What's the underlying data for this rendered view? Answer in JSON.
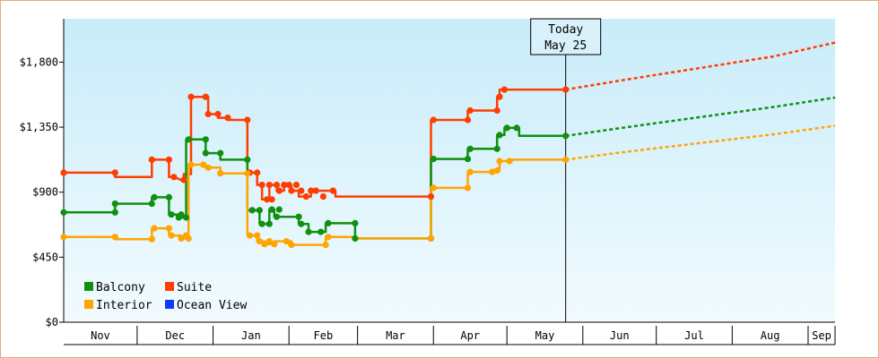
{
  "chart_data": {
    "type": "line",
    "title": "",
    "xlabel": "",
    "ylabel": "",
    "ylim": [
      0,
      2100
    ],
    "y_ticks": [
      0,
      450,
      900,
      1350,
      1800
    ],
    "y_tick_labels": [
      "$0",
      "$450",
      "$900",
      "$1,350",
      "$1,800"
    ],
    "months": [
      "Nov",
      "Dec",
      "Jan",
      "Feb",
      "Mar",
      "Apr",
      "May",
      "Jun",
      "Jul",
      "Aug",
      "Sep"
    ],
    "month_starts": [
      0,
      30,
      61,
      92,
      120,
      151,
      181,
      212,
      242,
      273,
      304
    ],
    "x_end": 315,
    "today": {
      "line1": "Today",
      "line2": "May 25",
      "day": 205
    },
    "legend": [
      {
        "name": "Balcony",
        "color": "#109010"
      },
      {
        "name": "Suite",
        "color": "#ff3d00"
      },
      {
        "name": "Interior",
        "color": "#ffa500"
      },
      {
        "name": "Ocean View",
        "color": "#0a3cff"
      }
    ],
    "series": [
      {
        "name": "Suite",
        "color": "#ff3d00",
        "points": [
          [
            0,
            1035
          ],
          [
            21,
            1035
          ],
          [
            21,
            1005
          ],
          [
            36,
            1005
          ],
          [
            36,
            1125
          ],
          [
            43,
            1125
          ],
          [
            43,
            1005
          ],
          [
            45,
            1005
          ],
          [
            45,
            1005
          ],
          [
            48,
            985
          ],
          [
            49,
            985
          ],
          [
            49,
            1025
          ],
          [
            52,
            1025
          ],
          [
            52,
            1560
          ],
          [
            59,
            1560
          ],
          [
            59,
            1440
          ],
          [
            63,
            1440
          ],
          [
            63,
            1415
          ],
          [
            67,
            1415
          ],
          [
            67,
            1400
          ],
          [
            75,
            1400
          ],
          [
            75,
            1035
          ],
          [
            79,
            1035
          ],
          [
            79,
            950
          ],
          [
            81,
            950
          ],
          [
            81,
            850
          ],
          [
            84,
            850
          ],
          [
            84,
            950
          ],
          [
            87,
            950
          ],
          [
            87,
            910
          ],
          [
            90,
            910
          ],
          [
            90,
            950
          ],
          [
            93,
            950
          ],
          [
            93,
            910
          ],
          [
            96,
            910
          ],
          [
            96,
            870
          ],
          [
            101,
            870
          ],
          [
            101,
            910
          ],
          [
            111,
            910
          ],
          [
            111,
            870
          ],
          [
            150,
            870
          ],
          [
            150,
            1400
          ],
          [
            165,
            1400
          ],
          [
            165,
            1465
          ],
          [
            177,
            1465
          ],
          [
            177,
            1560
          ],
          [
            178,
            1560
          ],
          [
            178,
            1610
          ],
          [
            180,
            1610
          ],
          [
            180,
            1610
          ],
          [
            205,
            1610
          ]
        ],
        "projection": [
          [
            205,
            1610
          ],
          [
            230,
            1680
          ],
          [
            260,
            1760
          ],
          [
            290,
            1840
          ],
          [
            315,
            1935
          ]
        ]
      },
      {
        "name": "Balcony",
        "color": "#109010",
        "points": [
          [
            0,
            760
          ],
          [
            21,
            760
          ],
          [
            21,
            820
          ],
          [
            36,
            820
          ],
          [
            36,
            865
          ],
          [
            43,
            865
          ],
          [
            43,
            745
          ],
          [
            47,
            745
          ],
          [
            47,
            725
          ],
          [
            50,
            725
          ],
          [
            50,
            1265
          ],
          [
            58,
            1265
          ],
          [
            58,
            1170
          ],
          [
            64,
            1170
          ],
          [
            64,
            1125
          ],
          [
            75,
            1125
          ],
          [
            75,
            775
          ],
          [
            80,
            775
          ],
          [
            80,
            680
          ],
          [
            84,
            680
          ],
          [
            84,
            780
          ],
          [
            86,
            780
          ],
          [
            86,
            730
          ],
          [
            96,
            730
          ],
          [
            96,
            680
          ],
          [
            100,
            680
          ],
          [
            100,
            625
          ],
          [
            107,
            625
          ],
          [
            107,
            685
          ],
          [
            119,
            685
          ],
          [
            119,
            580
          ],
          [
            150,
            580
          ],
          [
            150,
            1130
          ],
          [
            165,
            1130
          ],
          [
            165,
            1200
          ],
          [
            177,
            1200
          ],
          [
            177,
            1295
          ],
          [
            180,
            1295
          ],
          [
            180,
            1345
          ],
          [
            186,
            1345
          ],
          [
            186,
            1290
          ],
          [
            205,
            1290
          ]
        ],
        "projection": [
          [
            205,
            1290
          ],
          [
            230,
            1350
          ],
          [
            260,
            1420
          ],
          [
            290,
            1490
          ],
          [
            315,
            1555
          ]
        ]
      },
      {
        "name": "Interior",
        "color": "#ffa500",
        "points": [
          [
            0,
            590
          ],
          [
            21,
            590
          ],
          [
            21,
            575
          ],
          [
            36,
            575
          ],
          [
            36,
            650
          ],
          [
            43,
            650
          ],
          [
            43,
            600
          ],
          [
            48,
            600
          ],
          [
            48,
            580
          ],
          [
            51,
            580
          ],
          [
            51,
            1090
          ],
          [
            58,
            1090
          ],
          [
            58,
            1070
          ],
          [
            64,
            1070
          ],
          [
            64,
            1030
          ],
          [
            75,
            1030
          ],
          [
            75,
            600
          ],
          [
            79,
            600
          ],
          [
            79,
            560
          ],
          [
            82,
            560
          ],
          [
            82,
            540
          ],
          [
            86,
            540
          ],
          [
            86,
            560
          ],
          [
            93,
            560
          ],
          [
            93,
            535
          ],
          [
            107,
            535
          ],
          [
            107,
            590
          ],
          [
            119,
            590
          ],
          [
            119,
            580
          ],
          [
            150,
            580
          ],
          [
            150,
            930
          ],
          [
            165,
            930
          ],
          [
            165,
            1040
          ],
          [
            175,
            1040
          ],
          [
            175,
            1050
          ],
          [
            178,
            1050
          ],
          [
            178,
            1115
          ],
          [
            183,
            1115
          ],
          [
            183,
            1125
          ],
          [
            205,
            1125
          ]
        ],
        "projection": [
          [
            205,
            1125
          ],
          [
            230,
            1180
          ],
          [
            260,
            1240
          ],
          [
            290,
            1300
          ],
          [
            315,
            1360
          ]
        ]
      }
    ],
    "markers": [
      {
        "series": "Suite",
        "points": [
          [
            0,
            1035
          ],
          [
            21,
            1035
          ],
          [
            36,
            1125
          ],
          [
            43,
            1125
          ],
          [
            45,
            1005
          ],
          [
            49,
            985
          ],
          [
            52,
            1560
          ],
          [
            58,
            1560
          ],
          [
            59,
            1440
          ],
          [
            63,
            1440
          ],
          [
            67,
            1415
          ],
          [
            75,
            1400
          ],
          [
            76,
            1035
          ],
          [
            79,
            1035
          ],
          [
            81,
            950
          ],
          [
            83,
            850
          ],
          [
            85,
            850
          ],
          [
            84,
            950
          ],
          [
            87,
            950
          ],
          [
            88,
            910
          ],
          [
            90,
            950
          ],
          [
            92,
            950
          ],
          [
            93,
            910
          ],
          [
            95,
            950
          ],
          [
            97,
            910
          ],
          [
            99,
            870
          ],
          [
            101,
            910
          ],
          [
            103,
            910
          ],
          [
            106,
            870
          ],
          [
            110,
            910
          ],
          [
            150,
            870
          ],
          [
            151,
            1400
          ],
          [
            165,
            1400
          ],
          [
            166,
            1465
          ],
          [
            177,
            1465
          ],
          [
            178,
            1560
          ],
          [
            180,
            1610
          ],
          [
            205,
            1610
          ]
        ]
      },
      {
        "series": "Balcony",
        "points": [
          [
            0,
            760
          ],
          [
            21,
            760
          ],
          [
            21,
            820
          ],
          [
            36,
            820
          ],
          [
            37,
            865
          ],
          [
            43,
            865
          ],
          [
            44,
            745
          ],
          [
            47,
            725
          ],
          [
            48,
            745
          ],
          [
            50,
            725
          ],
          [
            51,
            1265
          ],
          [
            58,
            1265
          ],
          [
            58,
            1170
          ],
          [
            64,
            1170
          ],
          [
            75,
            1125
          ],
          [
            77,
            775
          ],
          [
            80,
            775
          ],
          [
            81,
            680
          ],
          [
            84,
            680
          ],
          [
            85,
            780
          ],
          [
            88,
            780
          ],
          [
            87,
            730
          ],
          [
            96,
            730
          ],
          [
            97,
            680
          ],
          [
            100,
            625
          ],
          [
            105,
            625
          ],
          [
            108,
            685
          ],
          [
            119,
            685
          ],
          [
            119,
            580
          ],
          [
            150,
            580
          ],
          [
            151,
            1130
          ],
          [
            165,
            1130
          ],
          [
            166,
            1200
          ],
          [
            177,
            1200
          ],
          [
            178,
            1295
          ],
          [
            181,
            1345
          ],
          [
            185,
            1345
          ],
          [
            205,
            1290
          ]
        ]
      },
      {
        "series": "Interior",
        "points": [
          [
            0,
            590
          ],
          [
            21,
            590
          ],
          [
            36,
            575
          ],
          [
            37,
            650
          ],
          [
            43,
            650
          ],
          [
            44,
            600
          ],
          [
            48,
            580
          ],
          [
            50,
            600
          ],
          [
            51,
            580
          ],
          [
            52,
            1090
          ],
          [
            57,
            1090
          ],
          [
            59,
            1070
          ],
          [
            64,
            1030
          ],
          [
            75,
            1030
          ],
          [
            76,
            600
          ],
          [
            79,
            600
          ],
          [
            80,
            560
          ],
          [
            82,
            540
          ],
          [
            84,
            560
          ],
          [
            86,
            540
          ],
          [
            91,
            560
          ],
          [
            93,
            535
          ],
          [
            107,
            535
          ],
          [
            108,
            590
          ],
          [
            150,
            580
          ],
          [
            151,
            930
          ],
          [
            165,
            930
          ],
          [
            166,
            1040
          ],
          [
            175,
            1040
          ],
          [
            177,
            1050
          ],
          [
            178,
            1115
          ],
          [
            182,
            1115
          ],
          [
            205,
            1125
          ]
        ]
      }
    ]
  }
}
